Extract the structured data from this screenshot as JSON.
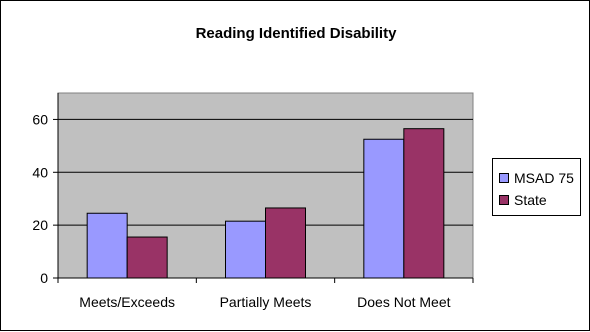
{
  "chart_data": {
    "type": "bar",
    "title": "Reading Identified Disability",
    "xlabel": "",
    "ylabel": "",
    "categories": [
      "Meets/Exceeds",
      "Partially Meets",
      "Does Not Meet"
    ],
    "series": [
      {
        "name": "MSAD 75",
        "values": [
          24.5,
          21.5,
          52.5
        ],
        "color": "#9999ff"
      },
      {
        "name": "State",
        "values": [
          15.5,
          26.5,
          56.5
        ],
        "color": "#993366"
      }
    ],
    "ylim": [
      0,
      70
    ],
    "yticks": [
      0,
      20,
      40,
      60
    ],
    "grid": true,
    "legend_position": "right",
    "plot_background": "#c0c0c0"
  }
}
